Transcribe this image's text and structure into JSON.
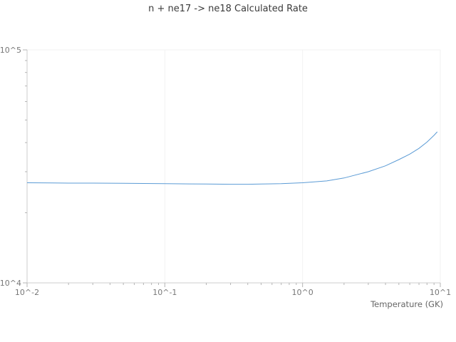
{
  "colors": {
    "line": "#5b9bd5",
    "grid": "#f2f2f2",
    "axis": "#cccccc",
    "tick": "#b5b5b5",
    "tick_label": "#777777",
    "title": "#3b3b3b",
    "background": "#ffffff"
  },
  "chart_data": {
    "type": "line",
    "title": "n + ne17 -> ne18 Calculated Rate",
    "xlabel": "Temperature (GK)",
    "ylabel": "",
    "x_scale": "log",
    "y_scale": "log",
    "xlim": [
      0.01,
      10
    ],
    "ylim": [
      10000,
      100000
    ],
    "grid": true,
    "legend": "none",
    "x_ticks": {
      "values": [
        0.01,
        0.1,
        1,
        10
      ],
      "labels": [
        "10^-2",
        "10^-1",
        "10^0",
        "10^1"
      ]
    },
    "y_ticks": {
      "values": [
        10000,
        100000
      ],
      "labels": [
        "10^4",
        "10^5"
      ]
    },
    "series": [
      {
        "name": "calculated-rate",
        "x": [
          0.01,
          0.015,
          0.02,
          0.03,
          0.05,
          0.07,
          0.1,
          0.15,
          0.2,
          0.3,
          0.4,
          0.5,
          0.7,
          1.0,
          1.5,
          2.0,
          3.0,
          4.0,
          5.0,
          6.0,
          7.0,
          8.0,
          9.0,
          9.5
        ],
        "y": [
          26900,
          26850,
          26800,
          26800,
          26750,
          26700,
          26650,
          26600,
          26550,
          26500,
          26500,
          26550,
          26650,
          26900,
          27400,
          28200,
          30000,
          31800,
          33800,
          35700,
          37800,
          40200,
          43000,
          44500
        ]
      }
    ]
  }
}
